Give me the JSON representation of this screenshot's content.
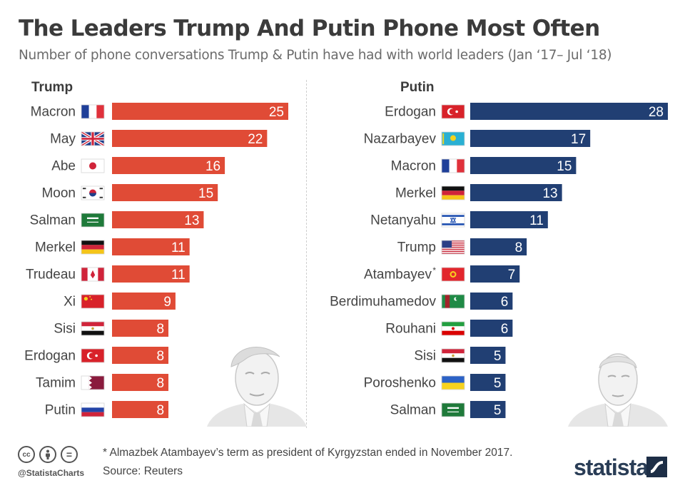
{
  "title": "The Leaders Trump And Putin Phone Most Often",
  "subtitle": "Number of phone conversations Trump & Putin have had with world leaders (Jan ‘17– Jul ‘18)",
  "colors": {
    "trump": "#e04b36",
    "putin": "#213f73",
    "label": "#444444"
  },
  "chart_data": [
    {
      "type": "bar",
      "orientation": "horizontal",
      "title": "Trump",
      "categories": [
        "Macron",
        "May",
        "Abe",
        "Moon",
        "Salman",
        "Merkel",
        "Trudeau",
        "Xi",
        "Sisi",
        "Erdogan",
        "Tamim",
        "Putin"
      ],
      "flags": [
        "france",
        "uk",
        "japan",
        "korea",
        "saudi",
        "germany",
        "canada",
        "china",
        "egypt",
        "turkey",
        "qatar",
        "russia"
      ],
      "values": [
        25,
        22,
        16,
        15,
        13,
        11,
        11,
        9,
        8,
        8,
        8,
        8
      ],
      "xlim": [
        0,
        25
      ]
    },
    {
      "type": "bar",
      "orientation": "horizontal",
      "title": "Putin",
      "categories": [
        "Erdogan",
        "Nazarbayev",
        "Macron",
        "Merkel",
        "Netanyahu",
        "Trump",
        "Atambayev",
        "Berdimuhamedov",
        "Rouhani",
        "Sisi",
        "Poroshenko",
        "Salman"
      ],
      "category_marks": [
        "",
        "",
        "",
        "",
        "",
        "",
        "*",
        "",
        "",
        "",
        "",
        ""
      ],
      "flags": [
        "turkey",
        "kazakhstan",
        "france",
        "germany",
        "israel",
        "usa",
        "kyrgyzstan",
        "turkmenistan",
        "iran",
        "egypt",
        "ukraine",
        "saudi"
      ],
      "values": [
        28,
        17,
        15,
        13,
        11,
        8,
        7,
        6,
        6,
        5,
        5,
        5
      ],
      "xlim": [
        0,
        28
      ]
    }
  ],
  "footer": {
    "footnote": "* Almazbek Atambayev’s term as president of Kyrgyzstan ended in November 2017.",
    "source": "Source: Reuters",
    "handle": "@StatistaCharts",
    "brand": "statista",
    "cc_icons": [
      "cc",
      "by",
      "="
    ]
  }
}
